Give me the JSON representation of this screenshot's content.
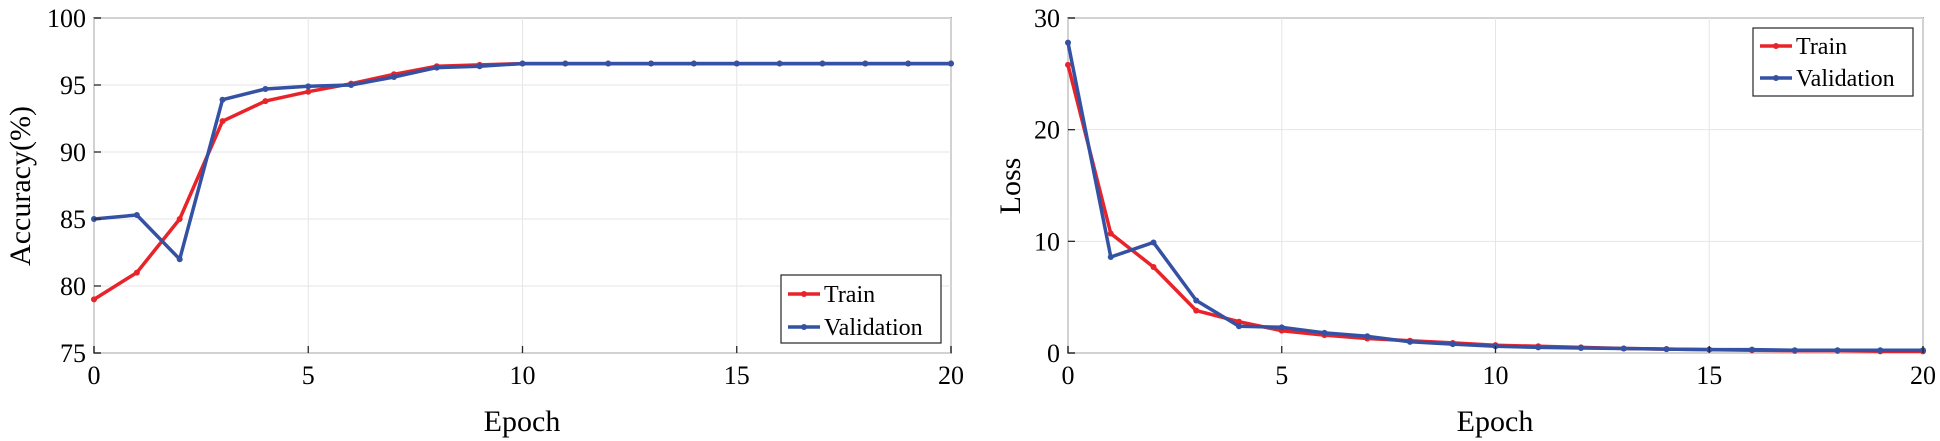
{
  "colors": {
    "train": "#e8242a",
    "validation": "#3451a3"
  },
  "chart_data": [
    {
      "type": "line",
      "title": "",
      "xlabel": "Epoch",
      "ylabel": "Accuracy(%)",
      "xlim": [
        0,
        20
      ],
      "ylim": [
        75,
        100
      ],
      "xticks": [
        0,
        5,
        10,
        15,
        20
      ],
      "yticks": [
        75,
        80,
        85,
        90,
        95,
        100
      ],
      "grid": true,
      "legend_position": "bottom-right",
      "x": [
        0,
        1,
        2,
        3,
        4,
        5,
        6,
        7,
        8,
        9,
        10,
        11,
        12,
        13,
        14,
        15,
        16,
        17,
        18,
        19,
        20
      ],
      "series": [
        {
          "name": "Train",
          "color_key": "train",
          "values": [
            79.0,
            81.0,
            85.0,
            92.3,
            93.8,
            94.5,
            95.1,
            95.8,
            96.4,
            96.5,
            96.6,
            96.6,
            96.6,
            96.6,
            96.6,
            96.6,
            96.6,
            96.6,
            96.6,
            96.6,
            96.6
          ]
        },
        {
          "name": "Validation",
          "color_key": "validation",
          "values": [
            85.0,
            85.3,
            82.0,
            93.9,
            94.7,
            94.9,
            95.0,
            95.6,
            96.3,
            96.4,
            96.6,
            96.6,
            96.6,
            96.6,
            96.6,
            96.6,
            96.6,
            96.6,
            96.6,
            96.6,
            96.6
          ]
        }
      ]
    },
    {
      "type": "line",
      "title": "",
      "xlabel": "Epoch",
      "ylabel": "Loss",
      "xlim": [
        0,
        20
      ],
      "ylim": [
        0,
        30
      ],
      "xticks": [
        0,
        5,
        10,
        15,
        20
      ],
      "yticks": [
        0,
        10,
        20,
        30
      ],
      "grid": true,
      "legend_position": "top-right",
      "x": [
        0,
        1,
        2,
        3,
        4,
        5,
        6,
        7,
        8,
        9,
        10,
        11,
        12,
        13,
        14,
        15,
        16,
        17,
        18,
        19,
        20
      ],
      "series": [
        {
          "name": "Train",
          "color_key": "train",
          "values": [
            25.8,
            10.7,
            7.7,
            3.8,
            2.8,
            2.0,
            1.6,
            1.3,
            1.1,
            0.9,
            0.7,
            0.6,
            0.5,
            0.4,
            0.35,
            0.3,
            0.25,
            0.2,
            0.2,
            0.15,
            0.15
          ]
        },
        {
          "name": "Validation",
          "color_key": "validation",
          "values": [
            27.8,
            8.6,
            9.9,
            4.7,
            2.4,
            2.3,
            1.8,
            1.5,
            1.0,
            0.8,
            0.6,
            0.5,
            0.45,
            0.4,
            0.35,
            0.3,
            0.3,
            0.25,
            0.25,
            0.25,
            0.25
          ]
        }
      ]
    }
  ]
}
